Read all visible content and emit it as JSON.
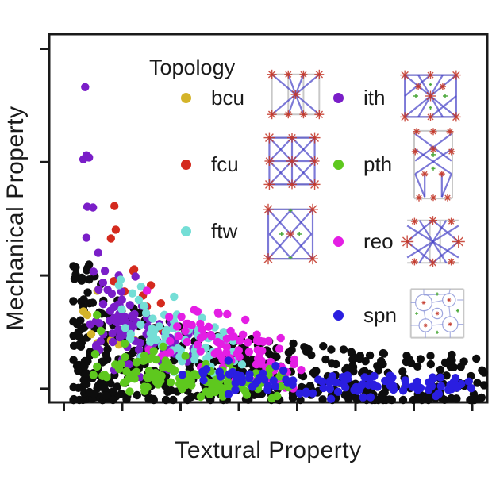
{
  "chart_data": {
    "type": "scatter",
    "title": "",
    "xlabel": "Textural Property",
    "ylabel": "Mechanical Property",
    "axes": {
      "x_range": [
        0,
        1
      ],
      "y_range": [
        0,
        1
      ],
      "x_ticks": 8,
      "y_ticks": 4,
      "x_tick_labels": [],
      "y_tick_labels": [],
      "grid": false,
      "frame": "full-box"
    },
    "legend": {
      "title": "Topology",
      "position": "inside-top-right",
      "columns": 2,
      "entries": [
        {
          "label": "bcu",
          "color": "#d4b429",
          "thumbnail": "bcu-net"
        },
        {
          "label": "fcu",
          "color": "#d42a1e",
          "thumbnail": "fcu-net"
        },
        {
          "label": "ftw",
          "color": "#74ded6",
          "thumbnail": "ftw-net"
        },
        {
          "label": "ith",
          "color": "#7a1ec8",
          "thumbnail": "ith-net"
        },
        {
          "label": "pth",
          "color": "#5ec81e",
          "thumbnail": "pth-net"
        },
        {
          "label": "reo",
          "color": "#e41ee4",
          "thumbnail": "reo-net"
        },
        {
          "label": "spn",
          "color": "#2a1ee0",
          "thumbnail": "spn-net"
        }
      ]
    },
    "point_radius_px": 5.2,
    "series": [
      {
        "name": "other",
        "color": "#0d0d0d",
        "band": {
          "n": 500,
          "x_min": 0.055,
          "x_max": 0.995,
          "x_pow": 1.5,
          "env_a": 0.12,
          "env_b": -0.46,
          "env_cap": 0.38,
          "y_pow": 1.7,
          "y_base": 0.005
        },
        "points": [
          [
            0.091,
            0.374
          ],
          [
            0.15,
            0.329
          ],
          [
            0.092,
            0.269
          ]
        ]
      },
      {
        "name": "bcu",
        "color": "#d4b429",
        "points": [
          [
            0.11,
            0.303
          ],
          [
            0.087,
            0.237
          ],
          [
            0.096,
            0.185
          ],
          [
            0.141,
            0.168
          ],
          [
            0.11,
            0.161
          ],
          [
            0.159,
            0.157
          ],
          [
            0.156,
            0.224
          ],
          [
            0.078,
            0.247
          ],
          [
            0.183,
            0.189
          ],
          [
            0.196,
            0.168
          ]
        ]
      },
      {
        "name": "fcu",
        "color": "#d42a1e",
        "points": [
          [
            0.149,
            0.533
          ],
          [
            0.152,
            0.469
          ],
          [
            0.141,
            0.445
          ],
          [
            0.194,
            0.361
          ],
          [
            0.192,
            0.357
          ],
          [
            0.172,
            0.301
          ],
          [
            0.214,
            0.29
          ],
          [
            0.255,
            0.269
          ],
          [
            0.259,
            0.194
          ],
          [
            0.147,
            0.329
          ],
          [
            0.232,
            0.318
          ],
          [
            0.223,
            0.26
          ]
        ]
      },
      {
        "name": "ith",
        "color": "#7a1ec8",
        "points": [
          [
            0.082,
            0.856
          ],
          [
            0.085,
            0.671
          ],
          [
            0.078,
            0.66
          ],
          [
            0.091,
            0.665
          ],
          [
            0.087,
            0.531
          ],
          [
            0.1,
            0.529
          ],
          [
            0.085,
            0.447
          ],
          [
            0.112,
            0.406
          ],
          [
            0.101,
            0.355
          ],
          [
            0.127,
            0.357
          ],
          [
            0.123,
            0.325
          ],
          [
            0.143,
            0.295
          ]
        ],
        "clusters": [
          {
            "cx": 0.163,
            "cy": 0.224,
            "rx": 0.075,
            "ry": 0.115,
            "n": 55
          },
          {
            "cx": 0.235,
            "cy": 0.17,
            "rx": 0.1,
            "ry": 0.08,
            "n": 25
          },
          {
            "cx": 0.3,
            "cy": 0.115,
            "rx": 0.06,
            "ry": 0.05,
            "n": 8
          }
        ]
      },
      {
        "name": "ftw",
        "color": "#74ded6",
        "points": [
          [
            0.163,
            0.333
          ],
          [
            0.21,
            0.314
          ],
          [
            0.159,
            0.318
          ],
          [
            0.19,
            0.296
          ],
          [
            0.413,
            0.135
          ],
          [
            0.44,
            0.103
          ]
        ],
        "clusters": [
          {
            "cx": 0.277,
            "cy": 0.19,
            "rx": 0.1,
            "ry": 0.1,
            "n": 40
          },
          {
            "cx": 0.35,
            "cy": 0.15,
            "rx": 0.095,
            "ry": 0.075,
            "n": 25
          }
        ]
      },
      {
        "name": "reo",
        "color": "#e41ee4",
        "points": [
          [
            0.223,
            0.303
          ],
          [
            0.274,
            0.232
          ],
          [
            0.292,
            0.206
          ],
          [
            0.486,
            0.14
          ],
          [
            0.473,
            0.103
          ],
          [
            0.527,
            0.06
          ],
          [
            0.543,
            0.082
          ]
        ],
        "clusters": [
          {
            "cx": 0.35,
            "cy": 0.17,
            "rx": 0.1,
            "ry": 0.095,
            "n": 38
          },
          {
            "cx": 0.45,
            "cy": 0.125,
            "rx": 0.11,
            "ry": 0.07,
            "n": 32
          },
          {
            "cx": 0.52,
            "cy": 0.09,
            "rx": 0.06,
            "ry": 0.055,
            "n": 12
          }
        ]
      },
      {
        "name": "pth",
        "color": "#5ec81e",
        "points": [
          [
            0.109,
            0.237
          ],
          [
            0.118,
            0.194
          ],
          [
            0.109,
            0.097
          ],
          [
            0.105,
            0.131
          ]
        ],
        "clusters": [
          {
            "cx": 0.214,
            "cy": 0.095,
            "rx": 0.1,
            "ry": 0.058,
            "n": 45
          },
          {
            "cx": 0.34,
            "cy": 0.065,
            "rx": 0.12,
            "ry": 0.045,
            "n": 50
          },
          {
            "cx": 0.455,
            "cy": 0.05,
            "rx": 0.09,
            "ry": 0.035,
            "n": 28
          }
        ]
      },
      {
        "name": "spn",
        "color": "#2a1ee0",
        "points": [
          [
            0.304,
            0.075
          ],
          [
            0.389,
            0.082
          ],
          [
            0.48,
            0.067
          ],
          [
            0.359,
            0.09
          ]
        ],
        "clusters": [
          {
            "cx": 0.43,
            "cy": 0.063,
            "rx": 0.1,
            "ry": 0.042,
            "n": 25
          },
          {
            "cx": 0.6,
            "cy": 0.05,
            "rx": 0.14,
            "ry": 0.032,
            "n": 35
          },
          {
            "cx": 0.775,
            "cy": 0.044,
            "rx": 0.12,
            "ry": 0.026,
            "n": 30
          },
          {
            "cx": 0.9,
            "cy": 0.043,
            "rx": 0.07,
            "ry": 0.024,
            "n": 18
          }
        ]
      }
    ]
  }
}
